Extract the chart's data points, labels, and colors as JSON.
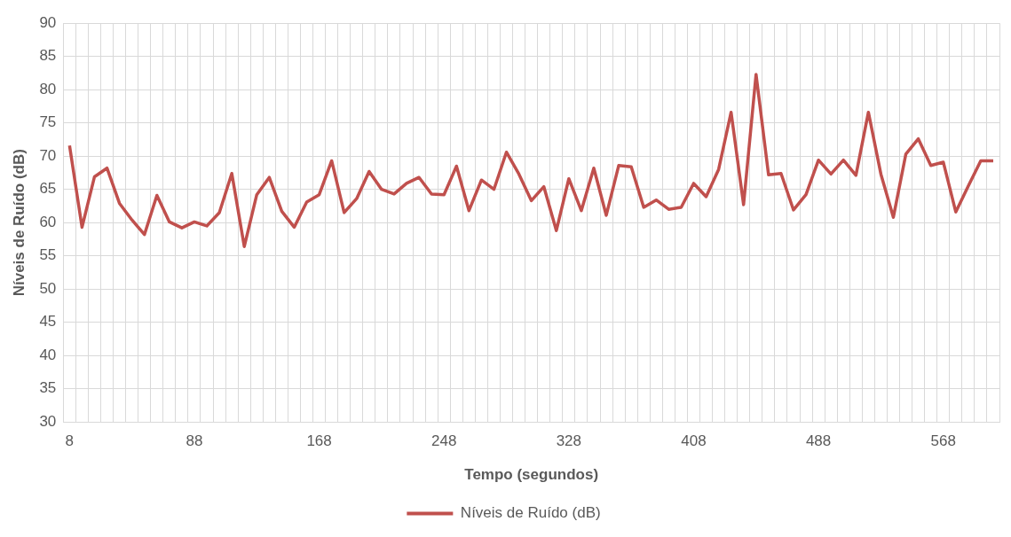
{
  "chart_data": {
    "type": "line",
    "xlabel": "Tempo (segundos)",
    "ylabel": "Níveis de Ruído (dB)",
    "categories": [
      "8",
      null,
      null,
      null,
      null,
      null,
      null,
      null,
      null,
      null,
      "88",
      null,
      null,
      null,
      null,
      null,
      null,
      null,
      null,
      null,
      "168",
      null,
      null,
      null,
      null,
      null,
      null,
      null,
      null,
      null,
      "248",
      null,
      null,
      null,
      null,
      null,
      null,
      null,
      null,
      null,
      "328",
      null,
      null,
      null,
      null,
      null,
      null,
      null,
      null,
      null,
      "408",
      null,
      null,
      null,
      null,
      null,
      null,
      null,
      null,
      null,
      "488",
      null,
      null,
      null,
      null,
      null,
      null,
      null,
      null,
      null,
      "568",
      null,
      null,
      null,
      null
    ],
    "series": [
      {
        "name": "Níveis de Ruído (dB)",
        "color": "#c0504d",
        "values": [
          71.6,
          59.3,
          66.9,
          68.2,
          62.9,
          60.4,
          58.2,
          64.1,
          60.1,
          59.2,
          60.1,
          59.5,
          61.5,
          67.4,
          56.4,
          64.2,
          66.8,
          61.7,
          59.3,
          63.1,
          64.2,
          69.3,
          61.5,
          63.6,
          67.7,
          65.0,
          64.3,
          65.9,
          66.8,
          64.3,
          64.2,
          68.5,
          61.8,
          66.4,
          65.0,
          70.6,
          67.3,
          63.3,
          65.4,
          58.8,
          66.6,
          61.8,
          68.2,
          61.1,
          68.6,
          68.4,
          62.3,
          63.4,
          62.0,
          62.3,
          65.9,
          63.9,
          68.0,
          76.6,
          62.7,
          82.3,
          67.2,
          67.4,
          61.9,
          64.2,
          69.4,
          67.3,
          69.4,
          67.1,
          76.6,
          67.3,
          60.8,
          70.3,
          72.6,
          68.6,
          69.1,
          61.6,
          65.5,
          69.3,
          69.3
        ]
      }
    ],
    "ylim": [
      30,
      90
    ],
    "yticks": [
      30,
      35,
      40,
      45,
      50,
      55,
      60,
      65,
      70,
      75,
      80,
      85,
      90
    ],
    "grid": true,
    "legend": "bottom",
    "marker": "none",
    "line_style": "solid"
  }
}
